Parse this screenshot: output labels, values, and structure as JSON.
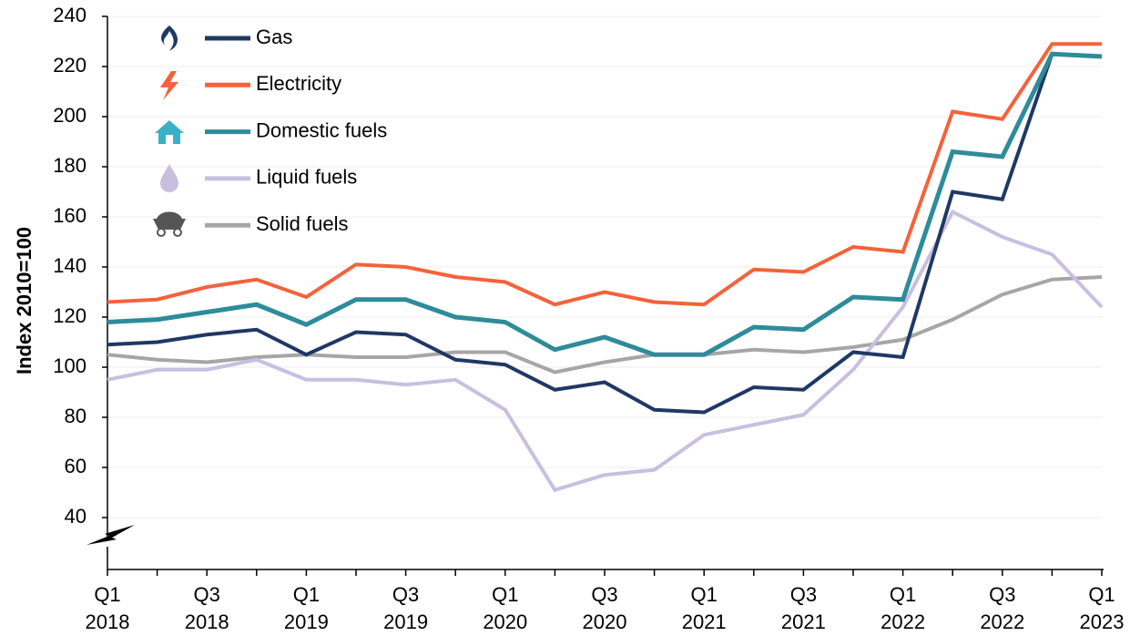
{
  "chart_data": {
    "type": "line",
    "y_label": "Index 2010=100",
    "categories": [
      "Q1 2018",
      null,
      "Q3 2018",
      null,
      "Q1 2019",
      null,
      "Q3 2019",
      null,
      "Q1 2020",
      null,
      "Q3 2020",
      null,
      "Q1 2021",
      null,
      "Q3 2021",
      null,
      "Q1 2022",
      null,
      "Q3 2022",
      null,
      "Q1 2023"
    ],
    "series": [
      {
        "name": "Gas",
        "color": "#1f3864",
        "values": [
          109,
          110,
          113,
          115,
          105,
          114,
          113,
          103,
          101,
          91,
          94,
          83,
          82,
          92,
          91,
          106,
          104,
          170,
          167,
          225,
          224
        ]
      },
      {
        "name": "Electricity",
        "color": "#f4623a",
        "values": [
          126,
          127,
          132,
          135,
          128,
          141,
          140,
          136,
          134,
          125,
          130,
          126,
          125,
          139,
          138,
          148,
          146,
          202,
          199,
          229,
          229
        ]
      },
      {
        "name": "Domestic fuels",
        "color": "#2e8b9a",
        "values": [
          118,
          119,
          122,
          125,
          117,
          127,
          127,
          120,
          118,
          107,
          112,
          105,
          105,
          116,
          115,
          128,
          127,
          186,
          184,
          225,
          224
        ]
      },
      {
        "name": "Liquid fuels",
        "color": "#c8bfe0",
        "values": [
          95,
          99,
          99,
          103,
          95,
          95,
          93,
          95,
          83,
          51,
          57,
          59,
          73,
          77,
          81,
          99,
          124,
          162,
          152,
          145,
          124
        ]
      },
      {
        "name": "Solid fuels",
        "color": "#a6a6a6",
        "values": [
          105,
          103,
          102,
          104,
          105,
          104,
          104,
          106,
          106,
          98,
          102,
          105,
          105,
          107,
          106,
          108,
          111,
          119,
          129,
          135,
          136
        ]
      }
    ],
    "ylim": [
      40,
      240
    ],
    "yticks": [
      40,
      60,
      80,
      100,
      120,
      140,
      160,
      180,
      200,
      220,
      240
    ],
    "grid": true
  }
}
